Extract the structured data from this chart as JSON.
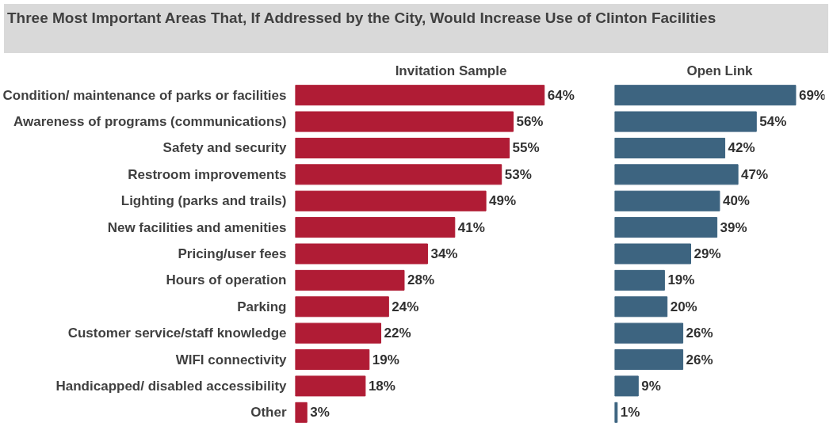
{
  "chart_data": [
    {
      "type": "bar",
      "orientation": "horizontal",
      "title": "Three Most Important Areas That, If Addressed by the City, Would Increase Use of Clinton Facilities",
      "subtitle": "Invitation Sample",
      "categories": [
        "Condition/ maintenance of parks or facilities",
        "Awareness of programs (communications)",
        "Safety and security",
        "Restroom improvements",
        "Lighting (parks and trails)",
        "New facilities and amenities",
        "Pricing/user fees",
        "Hours of operation",
        "Parking",
        "Customer service/staff knowledge",
        "WIFI connectivity",
        "Handicapped/ disabled accessibility",
        "Other"
      ],
      "values": [
        64,
        56,
        55,
        53,
        49,
        41,
        34,
        28,
        24,
        22,
        19,
        18,
        3
      ],
      "value_labels": [
        "64%",
        "56%",
        "55%",
        "53%",
        "49%",
        "41%",
        "34%",
        "28%",
        "24%",
        "22%",
        "19%",
        "18%",
        "3%"
      ],
      "color": "#b01c35",
      "grid": false,
      "tick_labels": "y"
    },
    {
      "type": "bar",
      "orientation": "horizontal",
      "title": "Open Link",
      "categories": [
        null,
        null,
        null,
        null,
        null,
        null,
        null,
        null,
        null,
        null,
        null,
        null,
        null
      ],
      "values": [
        69,
        54,
        42,
        47,
        40,
        39,
        29,
        19,
        20,
        26,
        26,
        9,
        1
      ],
      "value_labels": [
        "69%",
        "54%",
        "42%",
        "47%",
        "40%",
        "39%",
        "29%",
        "19%",
        "20%",
        "26%",
        "26%",
        "9%",
        "1%"
      ],
      "color": "#3d6480",
      "grid": false,
      "tick_labels": false
    }
  ]
}
